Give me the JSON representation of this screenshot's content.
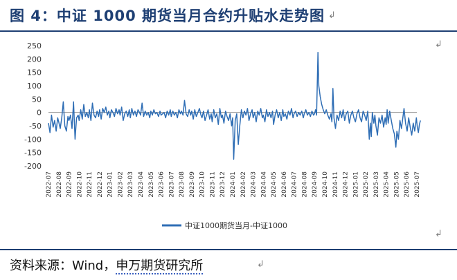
{
  "header": {
    "title": "图 4：中证 1000 期货当月合约升贴水走势图"
  },
  "footer": {
    "source_label": "资料来源：",
    "source_wind": "Wind，",
    "source_org": "申万期货研究所"
  },
  "colors": {
    "series": "#2f6eb5",
    "brand": "#1e3f73"
  },
  "chart_data": {
    "type": "line",
    "title": "",
    "xlabel": "",
    "ylabel": "",
    "ylim": [
      -200,
      250
    ],
    "yticks": [
      250,
      200,
      150,
      100,
      50,
      0,
      -50,
      -100,
      -150,
      -200
    ],
    "xticks": [
      "2022-07",
      "2022-08",
      "2022-09",
      "2022-10",
      "2022-11",
      "2022-12",
      "2023-01",
      "2023-02",
      "2023-03",
      "2023-04",
      "2023-05",
      "2023-06",
      "2023-07",
      "2023-08",
      "2023-09",
      "2023-10",
      "2023-11",
      "2023-12",
      "2024-01",
      "2024-02",
      "2024-03",
      "2024-04",
      "2024-05",
      "2024-06",
      "2024-07",
      "2024-08",
      "2024-09",
      "2024-10",
      "2024-11",
      "2024-12",
      "2025-01",
      "2025-02",
      "2025-03",
      "2025-04",
      "2025-05",
      "2025-06",
      "2025-07"
    ],
    "legend": "bottom-center",
    "series": [
      {
        "name": "中证1000期货当月-中证1000",
        "points": [
          [
            0.0,
            -40
          ],
          [
            0.15,
            -75
          ],
          [
            0.3,
            -10
          ],
          [
            0.45,
            -55
          ],
          [
            0.6,
            -30
          ],
          [
            0.75,
            -70
          ],
          [
            0.9,
            -20
          ],
          [
            1.0,
            -35
          ],
          [
            1.15,
            -60
          ],
          [
            1.3,
            -20
          ],
          [
            1.45,
            40
          ],
          [
            1.6,
            -50
          ],
          [
            1.75,
            -70
          ],
          [
            1.9,
            -15
          ],
          [
            2.0,
            -30
          ],
          [
            2.15,
            -10
          ],
          [
            2.3,
            -60
          ],
          [
            2.45,
            40
          ],
          [
            2.6,
            -100
          ],
          [
            2.75,
            -20
          ],
          [
            2.9,
            -10
          ],
          [
            3.0,
            -30
          ],
          [
            3.15,
            10
          ],
          [
            3.3,
            -25
          ],
          [
            3.45,
            30
          ],
          [
            3.6,
            -15
          ],
          [
            3.75,
            0
          ],
          [
            3.9,
            -20
          ],
          [
            4.0,
            10
          ],
          [
            4.15,
            -30
          ],
          [
            4.3,
            35
          ],
          [
            4.45,
            -10
          ],
          [
            4.6,
            -20
          ],
          [
            4.75,
            5
          ],
          [
            4.9,
            -15
          ],
          [
            5.0,
            10
          ],
          [
            5.15,
            -25
          ],
          [
            5.3,
            15
          ],
          [
            5.45,
            0
          ],
          [
            5.6,
            20
          ],
          [
            5.75,
            -10
          ],
          [
            5.9,
            5
          ],
          [
            6.0,
            -20
          ],
          [
            6.15,
            10
          ],
          [
            6.3,
            0
          ],
          [
            6.45,
            -15
          ],
          [
            6.6,
            15
          ],
          [
            6.75,
            -5
          ],
          [
            6.9,
            10
          ],
          [
            7.0,
            -10
          ],
          [
            7.15,
            20
          ],
          [
            7.3,
            -30
          ],
          [
            7.45,
            -5
          ],
          [
            7.6,
            5
          ],
          [
            7.75,
            -15
          ],
          [
            7.9,
            10
          ],
          [
            8.0,
            -20
          ],
          [
            8.15,
            15
          ],
          [
            8.3,
            -10
          ],
          [
            8.45,
            5
          ],
          [
            8.6,
            -15
          ],
          [
            8.75,
            10
          ],
          [
            8.9,
            0
          ],
          [
            9.0,
            -10
          ],
          [
            9.15,
            35
          ],
          [
            9.3,
            -15
          ],
          [
            9.45,
            5
          ],
          [
            9.6,
            -10
          ],
          [
            9.75,
            0
          ],
          [
            9.9,
            -20
          ],
          [
            10.0,
            5
          ],
          [
            10.15,
            -10
          ],
          [
            10.3,
            10
          ],
          [
            10.45,
            -5
          ],
          [
            10.6,
            0
          ],
          [
            10.75,
            -15
          ],
          [
            10.9,
            5
          ],
          [
            11.0,
            -10
          ],
          [
            11.15,
            -5
          ],
          [
            11.3,
            0
          ],
          [
            11.45,
            -20
          ],
          [
            11.6,
            5
          ],
          [
            11.75,
            -10
          ],
          [
            11.9,
            10
          ],
          [
            12.0,
            -15
          ],
          [
            12.15,
            5
          ],
          [
            12.3,
            -10
          ],
          [
            12.45,
            0
          ],
          [
            12.6,
            -20
          ],
          [
            12.75,
            10
          ],
          [
            12.9,
            -5
          ],
          [
            13.0,
            5
          ],
          [
            13.15,
            -10
          ],
          [
            13.3,
            45
          ],
          [
            13.45,
            -5
          ],
          [
            13.6,
            -15
          ],
          [
            13.75,
            10
          ],
          [
            13.9,
            -10
          ],
          [
            14.0,
            5
          ],
          [
            14.15,
            -25
          ],
          [
            14.3,
            10
          ],
          [
            14.45,
            -15
          ],
          [
            14.6,
            0
          ],
          [
            14.75,
            15
          ],
          [
            14.9,
            -10
          ],
          [
            15.0,
            -20
          ],
          [
            15.15,
            5
          ],
          [
            15.3,
            -30
          ],
          [
            15.45,
            -10
          ],
          [
            15.6,
            10
          ],
          [
            15.75,
            -25
          ],
          [
            15.9,
            -5
          ],
          [
            16.0,
            -35
          ],
          [
            16.15,
            10
          ],
          [
            16.3,
            -20
          ],
          [
            16.45,
            -5
          ],
          [
            16.6,
            -45
          ],
          [
            16.75,
            15
          ],
          [
            16.9,
            -20
          ],
          [
            17.0,
            -10
          ],
          [
            17.15,
            -40
          ],
          [
            17.3,
            5
          ],
          [
            17.45,
            -15
          ],
          [
            17.6,
            -30
          ],
          [
            17.75,
            -5
          ],
          [
            17.9,
            -50
          ],
          [
            18.0,
            -20
          ],
          [
            18.1,
            -175
          ],
          [
            18.25,
            -30
          ],
          [
            18.4,
            -5
          ],
          [
            18.55,
            -120
          ],
          [
            18.7,
            -50
          ],
          [
            18.85,
            10
          ],
          [
            19.0,
            -20
          ],
          [
            19.15,
            5
          ],
          [
            19.3,
            -10
          ],
          [
            19.45,
            15
          ],
          [
            19.6,
            -30
          ],
          [
            19.75,
            -5
          ],
          [
            19.9,
            10
          ],
          [
            20.0,
            -20
          ],
          [
            20.15,
            0
          ],
          [
            20.3,
            -35
          ],
          [
            20.45,
            5
          ],
          [
            20.6,
            -10
          ],
          [
            20.75,
            15
          ],
          [
            20.9,
            -20
          ],
          [
            21.0,
            -10
          ],
          [
            21.15,
            -35
          ],
          [
            21.3,
            10
          ],
          [
            21.45,
            -15
          ],
          [
            21.6,
            0
          ],
          [
            21.75,
            -20
          ],
          [
            21.9,
            5
          ],
          [
            22.0,
            -45
          ],
          [
            22.15,
            -10
          ],
          [
            22.3,
            10
          ],
          [
            22.45,
            -20
          ],
          [
            22.6,
            0
          ],
          [
            22.75,
            -30
          ],
          [
            22.9,
            10
          ],
          [
            23.0,
            -15
          ],
          [
            23.15,
            -5
          ],
          [
            23.3,
            -25
          ],
          [
            23.45,
            5
          ],
          [
            23.6,
            -10
          ],
          [
            23.75,
            15
          ],
          [
            23.9,
            -20
          ],
          [
            24.0,
            -5
          ],
          [
            24.15,
            5
          ],
          [
            24.3,
            -15
          ],
          [
            24.45,
            0
          ],
          [
            24.6,
            -10
          ],
          [
            24.75,
            5
          ],
          [
            24.9,
            -20
          ],
          [
            25.0,
            -5
          ],
          [
            25.15,
            10
          ],
          [
            25.3,
            -10
          ],
          [
            25.45,
            0
          ],
          [
            25.6,
            -15
          ],
          [
            25.75,
            5
          ],
          [
            25.9,
            -10
          ],
          [
            26.0,
            -5
          ],
          [
            26.1,
            10
          ],
          [
            26.2,
            -10
          ],
          [
            26.28,
            130
          ],
          [
            26.34,
            225
          ],
          [
            26.42,
            100
          ],
          [
            26.55,
            60
          ],
          [
            26.7,
            30
          ],
          [
            26.85,
            10
          ],
          [
            27.0,
            -5
          ],
          [
            27.15,
            10
          ],
          [
            27.3,
            -10
          ],
          [
            27.45,
            -25
          ],
          [
            27.6,
            -5
          ],
          [
            27.7,
            -35
          ],
          [
            27.8,
            90
          ],
          [
            27.9,
            -20
          ],
          [
            28.05,
            -60
          ],
          [
            28.2,
            -10
          ],
          [
            28.35,
            -30
          ],
          [
            28.5,
            5
          ],
          [
            28.65,
            -20
          ],
          [
            28.8,
            10
          ],
          [
            28.95,
            -30
          ],
          [
            29.1,
            -5
          ],
          [
            29.25,
            5
          ],
          [
            29.4,
            -40
          ],
          [
            29.55,
            -10
          ],
          [
            29.7,
            5
          ],
          [
            29.85,
            -20
          ],
          [
            30.0,
            -35
          ],
          [
            30.15,
            -5
          ],
          [
            30.3,
            10
          ],
          [
            30.45,
            -20
          ],
          [
            30.6,
            -35
          ],
          [
            30.75,
            5
          ],
          [
            30.9,
            -10
          ],
          [
            31.05,
            -30
          ],
          [
            31.2,
            5
          ],
          [
            31.35,
            -100
          ],
          [
            31.45,
            -40
          ],
          [
            31.55,
            -90
          ],
          [
            31.65,
            0
          ],
          [
            31.8,
            -40
          ],
          [
            31.9,
            -10
          ],
          [
            32.0,
            -50
          ],
          [
            32.15,
            -85
          ],
          [
            32.3,
            -20
          ],
          [
            32.45,
            -40
          ],
          [
            32.6,
            -10
          ],
          [
            32.75,
            -55
          ],
          [
            32.9,
            -20
          ],
          [
            33.0,
            -45
          ],
          [
            33.1,
            10
          ],
          [
            33.2,
            -40
          ],
          [
            33.35,
            5
          ],
          [
            33.5,
            -30
          ],
          [
            33.65,
            -60
          ],
          [
            33.8,
            -80
          ],
          [
            33.95,
            -130
          ],
          [
            34.05,
            -70
          ],
          [
            34.2,
            -100
          ],
          [
            34.35,
            -30
          ],
          [
            34.5,
            -60
          ],
          [
            34.65,
            -15
          ],
          [
            34.75,
            15
          ],
          [
            34.9,
            -40
          ],
          [
            35.05,
            -70
          ],
          [
            35.2,
            -20
          ],
          [
            35.35,
            -55
          ],
          [
            35.5,
            -85
          ],
          [
            35.65,
            -40
          ],
          [
            35.8,
            -70
          ],
          [
            35.95,
            -20
          ],
          [
            36.05,
            -55
          ],
          [
            36.15,
            -75
          ],
          [
            36.25,
            -45
          ],
          [
            36.35,
            -30
          ]
        ]
      }
    ]
  }
}
